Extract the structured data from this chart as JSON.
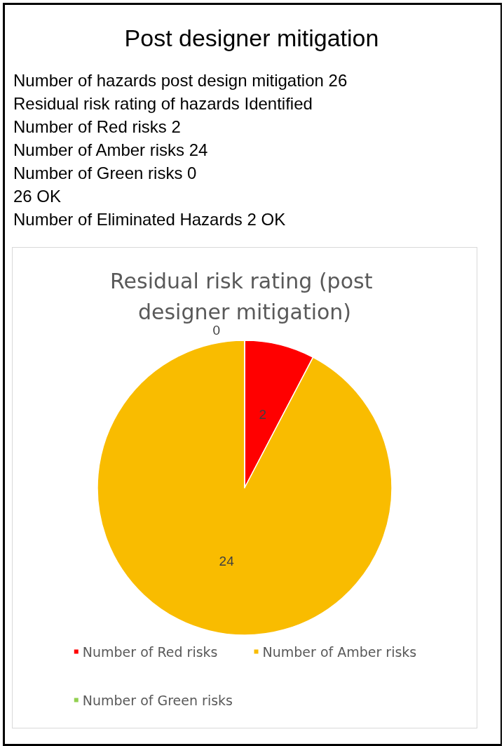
{
  "chart_data": [
    {
      "type": "other",
      "title": "Post designer mitigation",
      "annotations": [
        "Number of hazards post design mitigation 26",
        "Residual risk rating of hazards Identified",
        "Number of Red risks 2",
        "Number of Amber risks 24",
        "Number of Green risks 0",
        "26 OK",
        "Number of Eliminated Hazards 2 OK"
      ]
    },
    {
      "type": "pie",
      "title": "Residual risk rating (post designer mitigation)",
      "categories": [
        "Number of Red risks",
        "Number of Amber risks",
        "Number of Green risks"
      ],
      "values": [
        2,
        24,
        0
      ],
      "colors": [
        "#ff0000",
        "#f9bc00",
        "#92d050"
      ],
      "value_labels": [
        "2",
        "24",
        "0"
      ],
      "legend": "bottom"
    }
  ]
}
